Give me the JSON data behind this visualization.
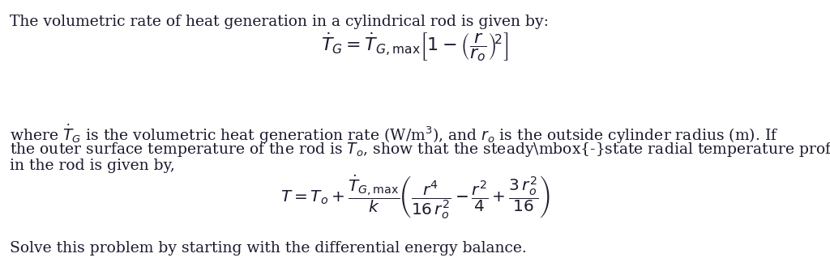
{
  "background_color": "#ffffff",
  "text_color": "#1a1a2e",
  "fig_width": 10.24,
  "fig_height": 3.45,
  "dpi": 100,
  "line1": "The volumetric rate of heat generation in a cylindrical rod is given by:",
  "eq1": "$\\dot{T}_G = \\dot{T}_{G,\\mathrm{max}}\\left[1 - \\left(\\dfrac{r}{r_o}\\right)^{\\!2}\\right]$",
  "line2_part1": "where $\\dot{T}_G$ is the volumetric heat generation rate (W/m$^3$), and $r_o$ is the outside cylinder radius (m). If",
  "line2_part2": "the outer surface temperature of the rod is $T_o$, show that the steady\\mbox{-}state radial temperature profile",
  "line2_part3": "in the rod is given by,",
  "eq2": "$T = T_o + \\dfrac{\\dot{T}_{G,\\mathrm{max}}}{k}\\left(\\dfrac{r^4}{16\\,r_o^2} - \\dfrac{r^2}{4} + \\dfrac{3\\,r_o^2}{16}\\right)$",
  "line3": "Solve this problem by starting with the differential energy balance.",
  "font_size_text": 13.5,
  "font_size_eq1": 16,
  "font_size_eq2": 14.5
}
